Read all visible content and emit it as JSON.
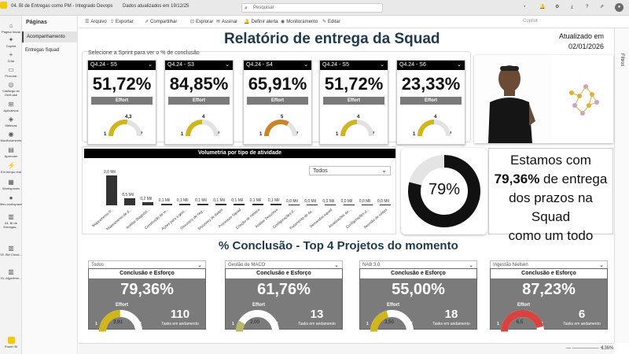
{
  "titlebar": {
    "tab_title": "04. BI de Entregas como PM - Integrado Devops",
    "updated": "Dados atualizados em 19/12/25",
    "search_placeholder": "Pesquisar",
    "copilot": "Copilot"
  },
  "leftnav": {
    "items": [
      {
        "label": "Página Inicial",
        "icon": "⌂"
      },
      {
        "label": "Copilot",
        "icon": "✦"
      },
      {
        "label": "Criar",
        "icon": "+"
      },
      {
        "label": "Procurar",
        "icon": "▭"
      },
      {
        "label": "Catálogo do OneLake",
        "icon": "◎"
      },
      {
        "label": "Aplicativos",
        "icon": "⊞"
      },
      {
        "label": "Métricas",
        "icon": "◈"
      },
      {
        "label": "Monitoramento",
        "icon": "◉"
      },
      {
        "label": "Aprender",
        "icon": "▤"
      },
      {
        "label": "Em tempo real",
        "icon": "⚡"
      },
      {
        "label": "Workspaces",
        "icon": "▦"
      },
      {
        "label": "Meu workspace",
        "icon": "●"
      },
      {
        "label": "04. BI de Entregas...",
        "icon": "▥"
      },
      {
        "label": "03. Bid Cloud...",
        "icon": "▥"
      },
      {
        "label": "01. Algoritmo...",
        "icon": "▥"
      }
    ],
    "brand": "Power BI"
  },
  "pages": {
    "title": "Páginas",
    "items": [
      "Acompanhamento",
      "Entregas Squad"
    ]
  },
  "toolbar": {
    "items": [
      {
        "label": "Arquivo",
        "icon": "☰"
      },
      {
        "label": "Exportar",
        "icon": "⇪"
      },
      {
        "label": "Compartilhar",
        "icon": "⇗"
      },
      {
        "label": "Explorar",
        "icon": "⊡"
      },
      {
        "label": "Assinar",
        "icon": "✉"
      },
      {
        "label": "Definir alerta",
        "icon": "🔔"
      },
      {
        "label": "Monitoramento",
        "icon": "◉"
      },
      {
        "label": "Editar",
        "icon": "✎"
      }
    ]
  },
  "filters_label": "Filtros",
  "report": {
    "title": "Relatório de entrega da Squad",
    "updated_label": "Atualizado em",
    "updated_date": "02/01/2026",
    "sprint_prompt": "Selecione a Sprint para ver o % de conclusão",
    "effort_label": "Effort",
    "sprints": [
      {
        "name": "Q4.24 - S5",
        "pct": "51,72%",
        "gauge_value": "4,3",
        "gauge_min": "1",
        "gauge_max": "7",
        "fill": 0.55,
        "color": "#d1b51c"
      },
      {
        "name": "Q4.24 - S3",
        "pct": "84,85%",
        "gauge_value": "4",
        "gauge_min": "1",
        "gauge_max": "7",
        "fill": 0.5,
        "color": "#d1b51c"
      },
      {
        "name": "Q4.24 - S4",
        "pct": "65,91%",
        "gauge_value": "5",
        "gauge_min": "1",
        "gauge_max": "7",
        "fill": 0.67,
        "color": "#c9852a"
      },
      {
        "name": "Q4.24 - S5",
        "pct": "51,72%",
        "gauge_value": "4",
        "gauge_min": "1",
        "gauge_max": "7",
        "fill": 0.5,
        "color": "#d1b51c"
      },
      {
        "name": "Q4.24 - S6",
        "pct": "23,33%",
        "gauge_value": "4",
        "gauge_min": "1",
        "gauge_max": "7",
        "fill": 0.5,
        "color": "#d1b51c"
      }
    ],
    "volumetria": {
      "title": "Volumetria por tipo de atividade",
      "filter": "Todos"
    },
    "kpi": {
      "donut_label": "79%",
      "donut_fill": 0.79,
      "line1": "Estamos com",
      "line2_bold": "79,36%",
      "line2_rest": " de entrega",
      "line3": "dos prazos na Squad",
      "line4": "como um todo"
    },
    "projects_title": "% Conclusão - Top 4 Projetos do momento",
    "projects_header": "Conclusão e Esforço",
    "tasks_label": "Tasks em andamento",
    "projects": [
      {
        "filter": "Todos",
        "pct": "79,36%",
        "tasks": "110",
        "gauge_value": "3,91",
        "gauge_min": "1",
        "gauge_max": "7",
        "fill": 0.49,
        "color": "#d1b51c"
      },
      {
        "filter": "Gestão de MACO",
        "pct": "61,76%",
        "tasks": "13",
        "gauge_value": "2,00",
        "gauge_min": "1",
        "gauge_max": "7",
        "fill": 0.17,
        "color": "#b8b86a"
      },
      {
        "filter": "NAB 3.0",
        "pct": "55,00%",
        "tasks": "18",
        "gauge_value": "3,50",
        "gauge_min": "1",
        "gauge_max": "7",
        "fill": 0.42,
        "color": "#d1b51c"
      },
      {
        "filter": "Ingestão Nielsen",
        "pct": "87,23%",
        "tasks": "6",
        "gauge_value": "6,5",
        "gauge_min": "1",
        "gauge_max": "7",
        "fill": 0.92,
        "color": "#d9433f"
      }
    ]
  },
  "chart_data": {
    "type": "bar",
    "title": "Volumetria por tipo de atividade",
    "categories": [
      "Mapeamento P...",
      "Mapeamento de d...",
      "Análise Diagnóst...",
      "Construção de m...",
      "Ações para a gest...",
      "Discovery de neg...",
      "Discovery de dados",
      "Processos Squad",
      "Criação de métrica",
      "Análise Descritiva",
      "Configurações d...",
      "Tratamento de da...",
      "Demandas squad",
      "Atualizações do...",
      "Configurações d...",
      "Reunião de ruídos"
    ],
    "values": [
      2.0,
      0.5,
      0.2,
      0.1,
      0.1,
      0.1,
      0.1,
      0.1,
      0.1,
      0.1,
      0.0,
      0.0,
      0.0,
      0.0,
      0.0,
      0.0
    ],
    "labels": [
      "2,0 Mil",
      "0,5 Mil",
      "0,2 Mil",
      "0,1 Mil",
      "0,1 Mil",
      "0,1 Mil",
      "0,1 Mil",
      "0,1 Mil",
      "0,1 Mil",
      "0,1 Mil",
      "0,0 Mil",
      "0,0 Mil",
      "0,0 Mil",
      "0,0 Mil",
      "0,0 Mil",
      "0,0 Mil"
    ],
    "ylim": [
      0,
      2.0
    ],
    "bar_color": "#333333"
  },
  "status": {
    "zoom": "136%"
  }
}
